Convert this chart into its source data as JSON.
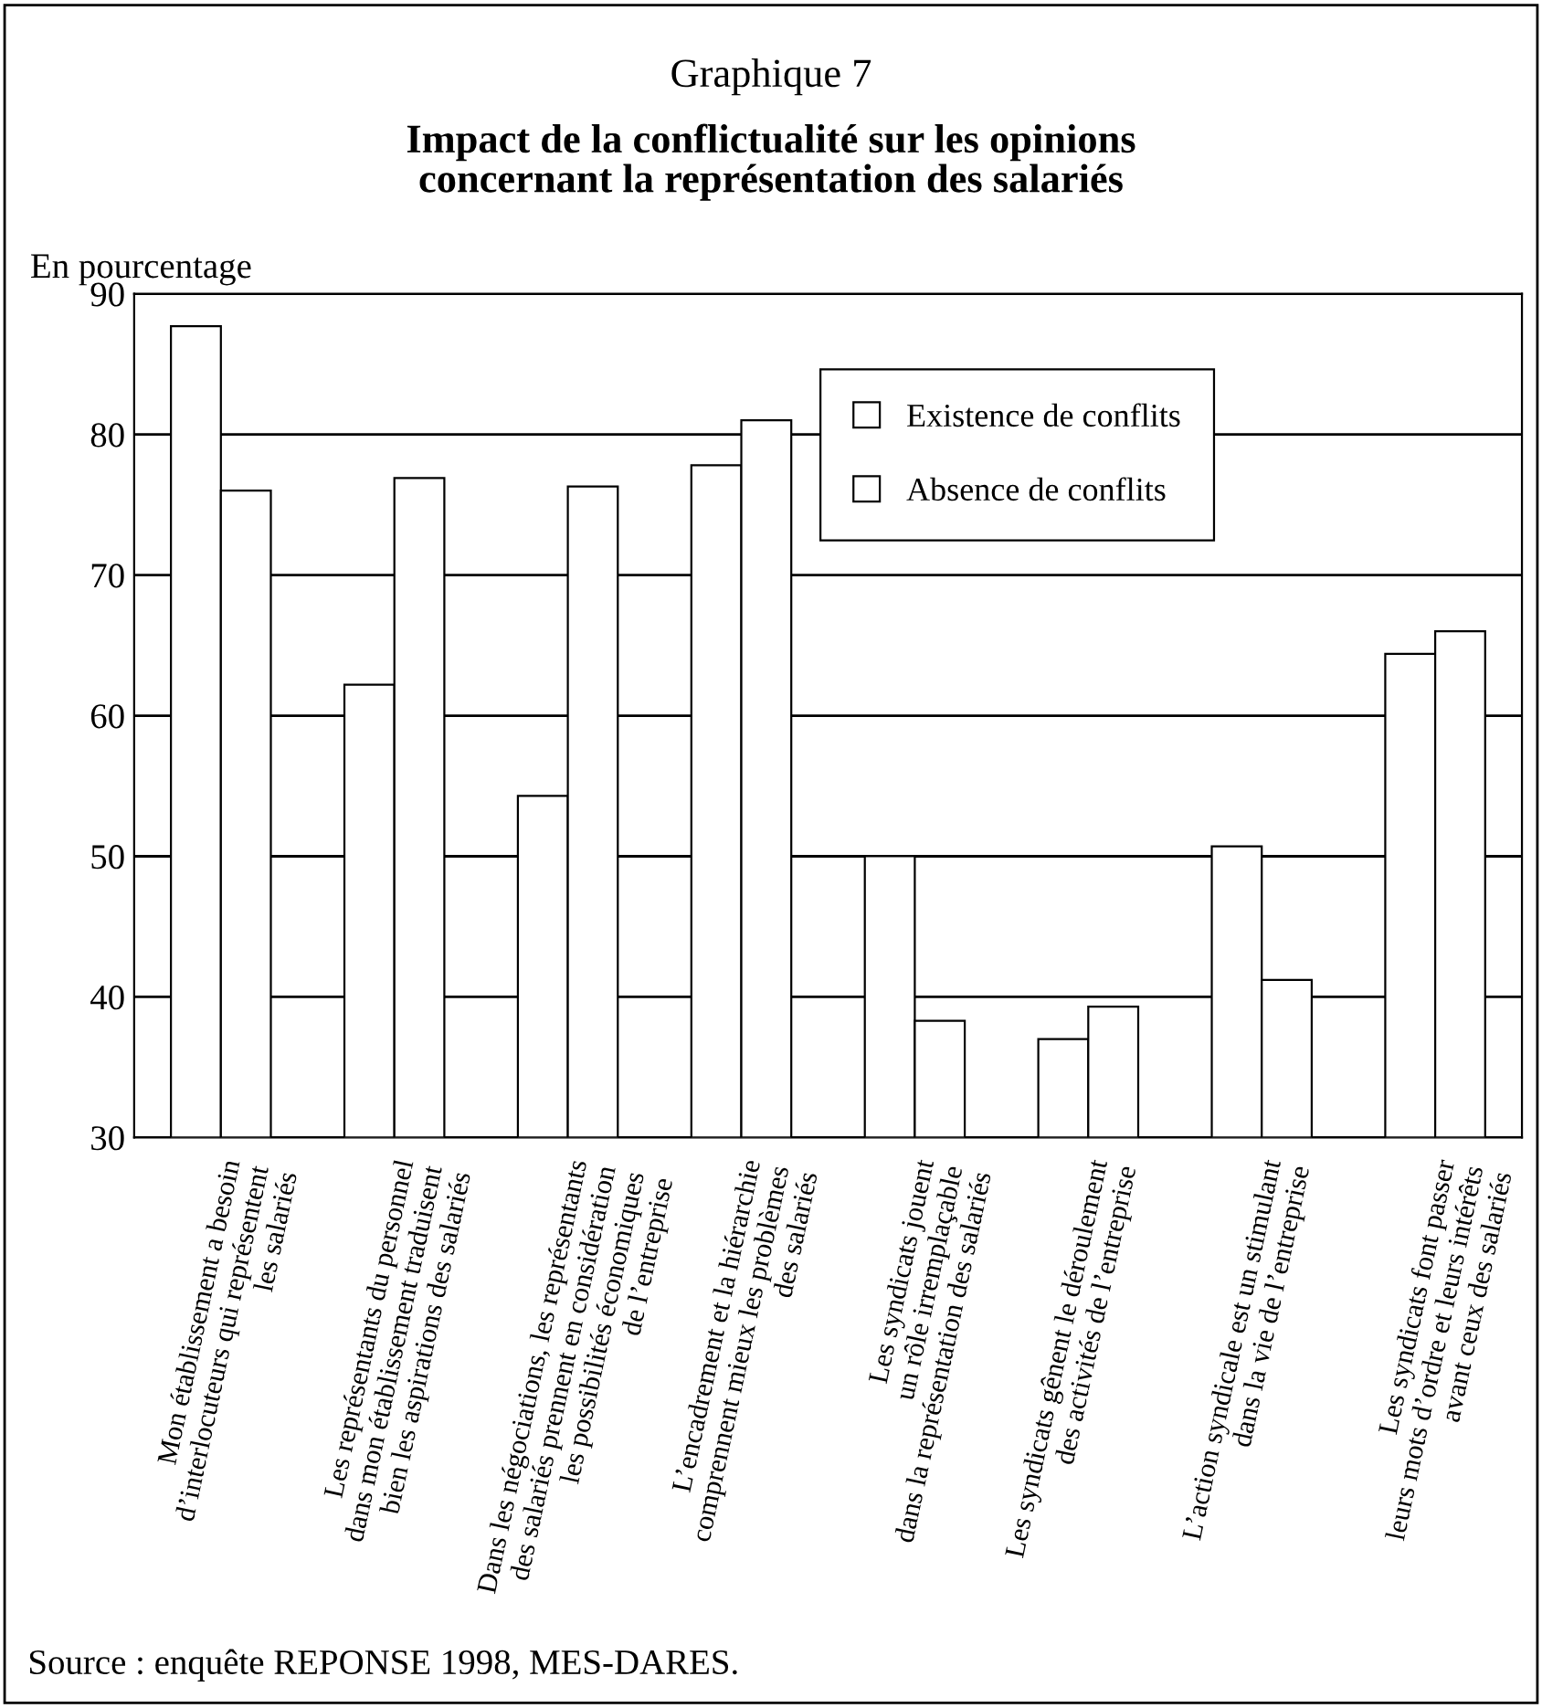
{
  "chart_data": {
    "type": "bar",
    "subtitle": "Graphique 7",
    "title": "Impact de la conflictualité sur les opinions\nconcernant la représentation des salariés",
    "ylabel": "En pourcentage",
    "categories": [
      "Mon établissement a besoin\nd’interlocuteurs qui représentent\nles salariés",
      "Les représentants du personnel\ndans mon établissement traduisent\nbien les aspirations des salariés",
      "Dans les négociations, les représentants\ndes salariés prennent en considération\nles possibilités économiques\nde l’entreprise",
      "L’encadrement et la hiérarchie\ncomprennent mieux les problèmes\ndes salariés",
      "Les syndicats jouent\nun rôle irremplaçable\ndans la représentation des salariés",
      "Les syndicats gênent le déroulement\ndes activités de l’entreprise",
      "L’action syndicale est un stimulant\ndans la vie de l’entreprise",
      "Les syndicats font passer\nleurs mots d’ordre et leurs intérêts\navant ceux des salariés"
    ],
    "series": [
      {
        "name": "Existence de conflits",
        "color": "#ffffff",
        "values": [
          87.7,
          62.2,
          54.3,
          77.8,
          50.0,
          37.0,
          50.7,
          64.4
        ]
      },
      {
        "name": "Absence de conflits",
        "color": "#ffffff",
        "values": [
          76.0,
          76.9,
          76.3,
          81.0,
          38.3,
          39.3,
          41.2,
          66.0
        ]
      }
    ],
    "ylim": [
      30,
      90
    ],
    "yticks": [
      30,
      40,
      50,
      60,
      70,
      80,
      90
    ],
    "grid": "y",
    "legend": "top right",
    "annotations": [
      "Source : enquête REPONSE 1998, MES-DARES."
    ]
  }
}
